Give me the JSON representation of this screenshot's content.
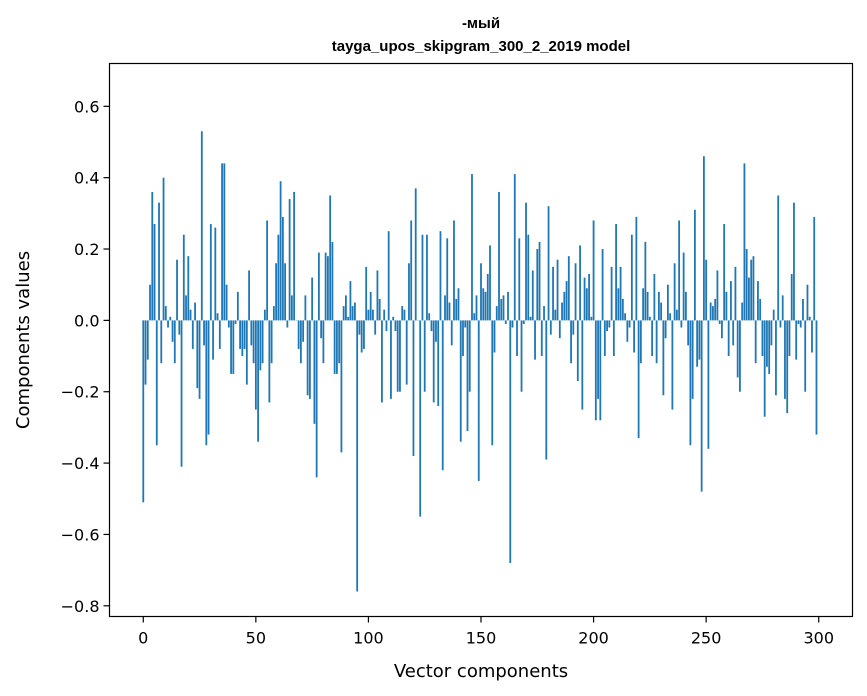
{
  "chart_data": {
    "type": "bar",
    "title": "-мый",
    "subtitle": "tayga_upos_skipgram_300_2_2019 model",
    "xlabel": "Vector components",
    "ylabel": "Components values",
    "xlim": [
      -15,
      315
    ],
    "ylim": [
      -0.83,
      0.72
    ],
    "xticks": [
      0,
      50,
      100,
      150,
      200,
      250,
      300
    ],
    "xtick_labels": [
      "0",
      "50",
      "100",
      "150",
      "200",
      "250",
      "300"
    ],
    "yticks": [
      -0.8,
      -0.6,
      -0.4,
      -0.2,
      0.0,
      0.2,
      0.4,
      0.6
    ],
    "ytick_labels": [
      "−0.8",
      "−0.6",
      "−0.4",
      "−0.2",
      "0.0",
      "0.2",
      "0.4",
      "0.6"
    ],
    "bar_color": "#1f77b4",
    "grid": false,
    "x": [
      0,
      1,
      2,
      3,
      4,
      5,
      6,
      7,
      8,
      9,
      10,
      11,
      12,
      13,
      14,
      15,
      16,
      17,
      18,
      19,
      20,
      21,
      22,
      23,
      24,
      25,
      26,
      27,
      28,
      29,
      30,
      31,
      32,
      33,
      34,
      35,
      36,
      37,
      38,
      39,
      40,
      41,
      42,
      43,
      44,
      45,
      46,
      47,
      48,
      49,
      50,
      51,
      52,
      53,
      54,
      55,
      56,
      57,
      58,
      59,
      60,
      61,
      62,
      63,
      64,
      65,
      66,
      67,
      68,
      69,
      70,
      71,
      72,
      73,
      74,
      75,
      76,
      77,
      78,
      79,
      80,
      81,
      82,
      83,
      84,
      85,
      86,
      87,
      88,
      89,
      90,
      91,
      92,
      93,
      94,
      95,
      96,
      97,
      98,
      99,
      100,
      101,
      102,
      103,
      104,
      105,
      106,
      107,
      108,
      109,
      110,
      111,
      112,
      113,
      114,
      115,
      116,
      117,
      118,
      119,
      120,
      121,
      122,
      123,
      124,
      125,
      126,
      127,
      128,
      129,
      130,
      131,
      132,
      133,
      134,
      135,
      136,
      137,
      138,
      139,
      140,
      141,
      142,
      143,
      144,
      145,
      146,
      147,
      148,
      149,
      150,
      151,
      152,
      153,
      154,
      155,
      156,
      157,
      158,
      159,
      160,
      161,
      162,
      163,
      164,
      165,
      166,
      167,
      168,
      169,
      170,
      171,
      172,
      173,
      174,
      175,
      176,
      177,
      178,
      179,
      180,
      181,
      182,
      183,
      184,
      185,
      186,
      187,
      188,
      189,
      190,
      191,
      192,
      193,
      194,
      195,
      196,
      197,
      198,
      199,
      200,
      201,
      202,
      203,
      204,
      205,
      206,
      207,
      208,
      209,
      210,
      211,
      212,
      213,
      214,
      215,
      216,
      217,
      218,
      219,
      220,
      221,
      222,
      223,
      224,
      225,
      226,
      227,
      228,
      229,
      230,
      231,
      232,
      233,
      234,
      235,
      236,
      237,
      238,
      239,
      240,
      241,
      242,
      243,
      244,
      245,
      246,
      247,
      248,
      249,
      250,
      251,
      252,
      253,
      254,
      255,
      256,
      257,
      258,
      259,
      260,
      261,
      262,
      263,
      264,
      265,
      266,
      267,
      268,
      269,
      270,
      271,
      272,
      273,
      274,
      275,
      276,
      277,
      278,
      279,
      280,
      281,
      282,
      283,
      284,
      285,
      286,
      287,
      288,
      289,
      290,
      291,
      292,
      293,
      294,
      295,
      296,
      297,
      298,
      299
    ],
    "values": [
      -0.51,
      -0.18,
      -0.11,
      0.1,
      0.36,
      0.27,
      -0.35,
      0.33,
      -0.12,
      0.4,
      0.04,
      -0.02,
      0.01,
      -0.06,
      -0.12,
      0.17,
      -0.04,
      -0.41,
      0.24,
      0.07,
      0.18,
      0.03,
      -0.08,
      0.05,
      -0.19,
      -0.22,
      0.53,
      -0.07,
      -0.35,
      -0.32,
      0.27,
      -0.11,
      0.26,
      0.02,
      -0.08,
      0.44,
      0.44,
      0.1,
      -0.02,
      -0.15,
      -0.15,
      -0.01,
      0.08,
      -0.08,
      -0.1,
      -0.08,
      -0.18,
      0.14,
      -0.07,
      -0.12,
      -0.25,
      -0.34,
      -0.14,
      -0.12,
      0.03,
      0.28,
      -0.23,
      -0.12,
      0.04,
      0.16,
      0.24,
      0.39,
      0.29,
      0.16,
      -0.02,
      0.34,
      0.07,
      0.36,
      0.0,
      -0.08,
      -0.12,
      -0.06,
      0.07,
      -0.21,
      -0.22,
      0.12,
      -0.29,
      -0.44,
      0.19,
      -0.05,
      -0.12,
      0.19,
      0.18,
      0.35,
      0.22,
      -0.15,
      -0.15,
      -0.12,
      -0.37,
      0.04,
      0.07,
      0.01,
      0.11,
      0.04,
      0.05,
      -0.76,
      -0.04,
      -0.09,
      -0.08,
      0.15,
      0.03,
      0.08,
      0.03,
      -0.04,
      0.14,
      0.06,
      -0.23,
      0.03,
      -0.03,
      0.25,
      -0.22,
      0.01,
      -0.03,
      -0.2,
      -0.2,
      0.04,
      0.03,
      -0.18,
      0.16,
      0.28,
      -0.38,
      0.37,
      0.0,
      -0.55,
      0.24,
      -0.2,
      0.24,
      0.02,
      -0.03,
      -0.23,
      -0.06,
      -0.24,
      0.25,
      -0.42,
      0.07,
      0.23,
      0.05,
      -0.07,
      0.28,
      0.06,
      0.09,
      -0.34,
      -0.1,
      -0.02,
      -0.31,
      -0.2,
      0.41,
      0.02,
      0.07,
      -0.45,
      0.16,
      0.09,
      0.08,
      0.13,
      0.21,
      -0.35,
      -0.09,
      0.04,
      0.36,
      0.06,
      0.07,
      -0.01,
      0.08,
      -0.68,
      -0.02,
      0.41,
      -0.1,
      0.23,
      -0.2,
      -0.01,
      0.33,
      0.24,
      0.01,
      0.14,
      -0.11,
      0.2,
      0.22,
      -0.1,
      0.04,
      -0.39,
      0.32,
      -0.04,
      0.15,
      0.03,
      0.17,
      -0.05,
      0.05,
      0.08,
      0.11,
      0.18,
      -0.12,
      -0.04,
      0.16,
      -0.17,
      0.21,
      -0.25,
      0.12,
      0.09,
      0.13,
      0.01,
      0.28,
      -0.28,
      -0.22,
      -0.28,
      0.2,
      -0.1,
      -0.03,
      -0.02,
      0.15,
      -0.1,
      0.27,
      0.09,
      0.15,
      0.06,
      0.02,
      -0.06,
      -0.02,
      0.24,
      -0.09,
      0.29,
      -0.33,
      -0.12,
      0.09,
      0.22,
      0.08,
      0.01,
      -0.1,
      0.13,
      -0.12,
      0.08,
      0.05,
      -0.21,
      -0.05,
      0.1,
      0.02,
      -0.25,
      0.16,
      0.03,
      0.28,
      -0.02,
      0.19,
      0.08,
      -0.07,
      -0.35,
      -0.22,
      0.31,
      -0.13,
      -0.11,
      -0.48,
      0.46,
      0.17,
      -0.36,
      0.05,
      0.04,
      0.06,
      0.14,
      -0.01,
      -0.05,
      0.27,
      0.08,
      -0.1,
      0.11,
      -0.07,
      0.15,
      -0.16,
      -0.2,
      0.05,
      0.44,
      0.2,
      0.12,
      0.17,
      0.18,
      -0.12,
      0.11,
      0.06,
      -0.1,
      -0.27,
      -0.13,
      -0.15,
      -0.07,
      0.03,
      -0.21,
      0.35,
      -0.02,
      0.07,
      -0.22,
      -0.26,
      -0.1,
      0.13,
      0.33,
      -0.11,
      -0.01,
      -0.02,
      0.06,
      -0.2,
      0.1,
      0.01,
      -0.09,
      0.29,
      -0.32
    ]
  }
}
